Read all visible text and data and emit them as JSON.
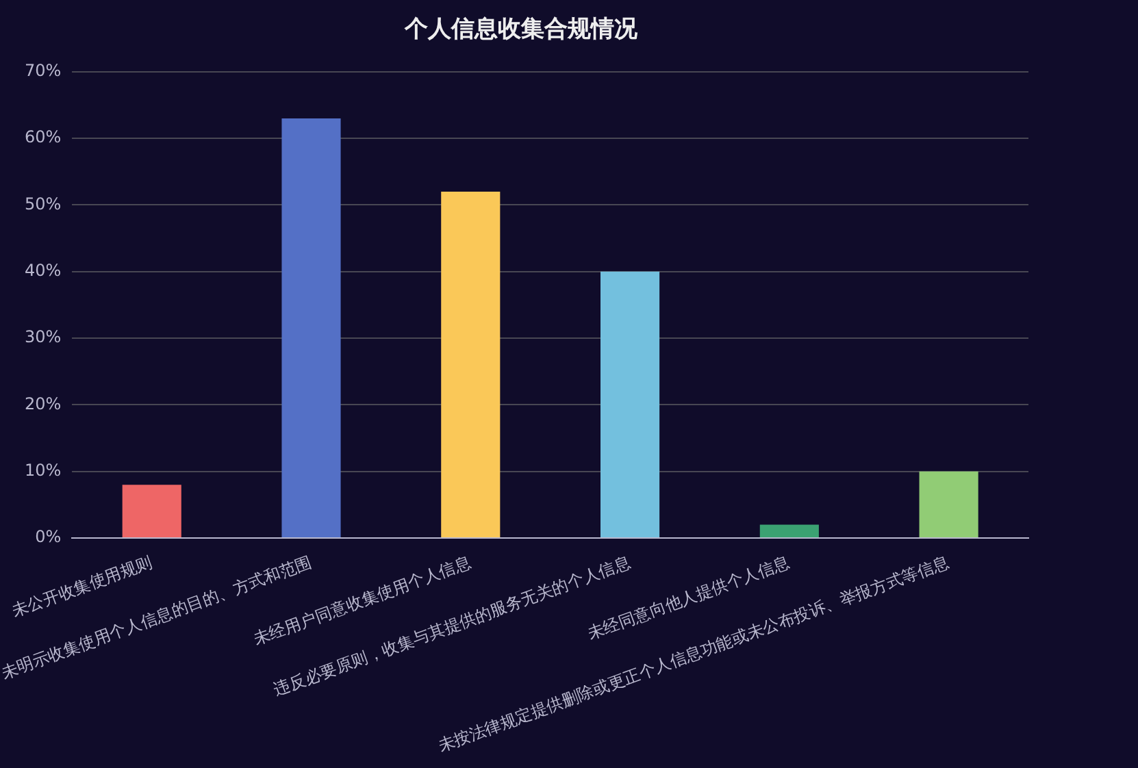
{
  "chart_data": {
    "type": "bar",
    "title": "个人信息收集合规情况",
    "categories": [
      "未公开收集使用规则",
      "未明示收集使用个人信息的目的、方式和范围",
      "未经用户同意收集使用个人信息",
      "违反必要原则，收集与其提供的服务无关的个人信息",
      "未经同意向他人提供个人信息",
      "未按法律规定提供删除或更正个人信息功能或未公布投诉、举报方式等信息"
    ],
    "values": [
      8,
      63,
      52,
      40,
      2,
      10
    ],
    "colors": [
      "#ee6666",
      "#5470c6",
      "#fac858",
      "#73c0de",
      "#3ba272",
      "#91cc75"
    ],
    "ylim": [
      0,
      70
    ],
    "yticks": [
      {
        "value": 0,
        "label": "0%"
      },
      {
        "value": 10,
        "label": "10%"
      },
      {
        "value": 20,
        "label": "20%"
      },
      {
        "value": 30,
        "label": "30%"
      },
      {
        "value": 40,
        "label": "40%"
      },
      {
        "value": 50,
        "label": "50%"
      },
      {
        "value": 60,
        "label": "60%"
      },
      {
        "value": 70,
        "label": "70%"
      }
    ],
    "grid": "y",
    "legend": false
  }
}
